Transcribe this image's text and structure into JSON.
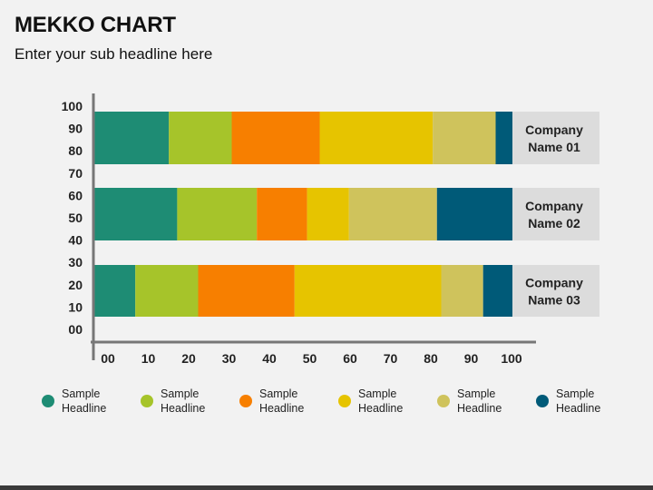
{
  "title": "MEKKO CHART",
  "subtitle": "Enter your sub headline here",
  "chart_data": {
    "type": "bar",
    "orientation": "horizontal",
    "stacked": true,
    "categories": [
      "Company Name 01",
      "Company Name 02",
      "Company Name 03"
    ],
    "series": [
      {
        "name": "Sample Headline",
        "color": "#1e8c74",
        "values": [
          18,
          20,
          10
        ]
      },
      {
        "name": "Sample Headline",
        "color": "#a6c42a",
        "values": [
          15,
          19,
          15
        ]
      },
      {
        "name": "Sample Headline",
        "color": "#f77f00",
        "values": [
          21,
          12,
          23
        ]
      },
      {
        "name": "Sample Headline",
        "color": "#e6c400",
        "values": [
          27,
          10,
          35
        ]
      },
      {
        "name": "Sample Headline",
        "color": "#cfc35c",
        "values": [
          15,
          21,
          10
        ]
      },
      {
        "name": "Sample Headline",
        "color": "#005a78",
        "values": [
          9,
          21,
          12
        ]
      }
    ],
    "x_ticks": [
      "00",
      "10",
      "20",
      "30",
      "40",
      "50",
      "60",
      "70",
      "80",
      "90",
      "100"
    ],
    "y_ticks": [
      "00",
      "10",
      "20",
      "30",
      "40",
      "50",
      "60",
      "70",
      "80",
      "90",
      "100"
    ],
    "xlim": [
      0,
      100
    ],
    "ylim": [
      0,
      100
    ],
    "category_label_bg": "#dcdcdc",
    "axis_color": "#777777"
  },
  "legend": [
    {
      "label": "Sample Headline",
      "color": "#1e8c74"
    },
    {
      "label": "Sample Headline",
      "color": "#a6c42a"
    },
    {
      "label": "Sample Headline",
      "color": "#f77f00"
    },
    {
      "label": "Sample Headline",
      "color": "#e6c400"
    },
    {
      "label": "Sample Headline",
      "color": "#cfc35c"
    },
    {
      "label": "Sample Headline",
      "color": "#005a78"
    }
  ]
}
